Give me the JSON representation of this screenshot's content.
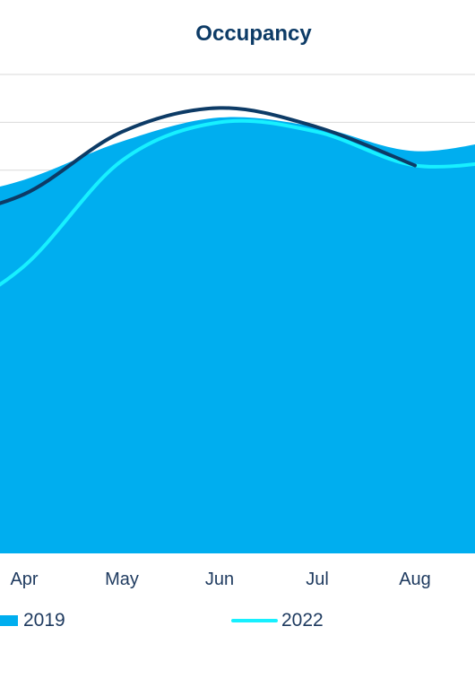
{
  "chart_data": {
    "type": "area",
    "title": "Occupancy",
    "categories": [
      "Apr",
      "May",
      "Jun",
      "Jul",
      "Aug"
    ],
    "ylim": [
      0,
      100
    ],
    "grid": true,
    "legend": "bottom",
    "series": [
      {
        "name": "2019",
        "type": "area",
        "color": "#00aeef",
        "values": [
          78,
          86,
          91,
          89,
          84
        ]
      },
      {
        "name": "2022",
        "type": "line",
        "color": "#17f0ff",
        "values": [
          60,
          82,
          90,
          88,
          81
        ]
      },
      {
        "name": "",
        "type": "line",
        "color": "#0d3b66",
        "values": [
          75,
          88,
          93,
          89,
          81
        ]
      }
    ]
  }
}
